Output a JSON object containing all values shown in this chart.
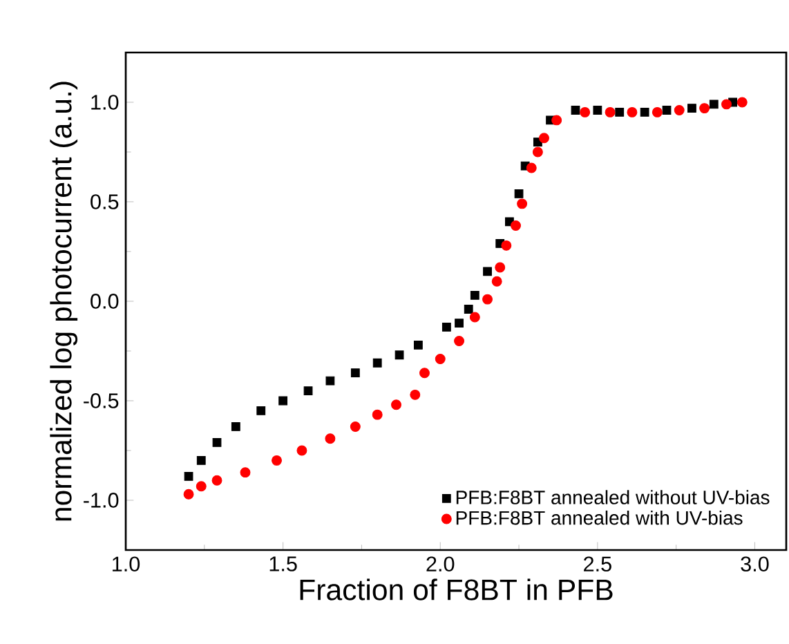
{
  "chart_data": {
    "type": "scatter",
    "xlabel": "Fraction of F8BT in PFB",
    "ylabel": "normalized log photocurrent (a.u.)",
    "xlim": [
      1.0,
      3.1
    ],
    "ylim": [
      -1.25,
      1.25
    ],
    "xticks": [
      {
        "value": 1.0,
        "label": "1.0"
      },
      {
        "value": 1.5,
        "label": "1.5"
      },
      {
        "value": 2.0,
        "label": "2.0"
      },
      {
        "value": 2.5,
        "label": "2.5"
      },
      {
        "value": 3.0,
        "label": "3.0"
      }
    ],
    "yticks": [
      {
        "value": -1.0,
        "label": "-1.0"
      },
      {
        "value": -0.5,
        "label": "-0.5"
      },
      {
        "value": 0.0,
        "label": "0.0"
      },
      {
        "value": 0.5,
        "label": "0.5"
      },
      {
        "value": 1.0,
        "label": "1.0"
      }
    ],
    "grid": false,
    "legend": "bottom right",
    "series": [
      {
        "name": "PFB:F8BT annealed without UV-bias",
        "color": "#000000",
        "marker": "square",
        "x": [
          1.2,
          1.24,
          1.29,
          1.35,
          1.43,
          1.5,
          1.58,
          1.65,
          1.73,
          1.8,
          1.87,
          1.93,
          2.02,
          2.06,
          2.09,
          2.11,
          2.15,
          2.19,
          2.22,
          2.25,
          2.27,
          2.31,
          2.35,
          2.43,
          2.5,
          2.57,
          2.65,
          2.72,
          2.8,
          2.87,
          2.93
        ],
        "values": [
          -0.88,
          -0.8,
          -0.71,
          -0.63,
          -0.55,
          -0.5,
          -0.45,
          -0.4,
          -0.36,
          -0.31,
          -0.27,
          -0.22,
          -0.13,
          -0.11,
          -0.04,
          0.03,
          0.15,
          0.29,
          0.4,
          0.54,
          0.68,
          0.8,
          0.91,
          0.96,
          0.96,
          0.95,
          0.95,
          0.96,
          0.97,
          0.99,
          1.0
        ]
      },
      {
        "name": "PFB:F8BT annealed with UV-bias",
        "color": "#ff0000",
        "marker": "circle",
        "x": [
          1.2,
          1.24,
          1.29,
          1.38,
          1.48,
          1.56,
          1.65,
          1.73,
          1.8,
          1.86,
          1.92,
          1.95,
          2.0,
          2.06,
          2.11,
          2.15,
          2.18,
          2.19,
          2.21,
          2.24,
          2.26,
          2.29,
          2.31,
          2.33,
          2.37,
          2.46,
          2.54,
          2.61,
          2.69,
          2.76,
          2.84,
          2.91,
          2.96
        ],
        "values": [
          -0.97,
          -0.93,
          -0.9,
          -0.86,
          -0.8,
          -0.75,
          -0.69,
          -0.63,
          -0.57,
          -0.52,
          -0.47,
          -0.36,
          -0.29,
          -0.2,
          -0.08,
          0.01,
          0.1,
          0.17,
          0.28,
          0.38,
          0.49,
          0.67,
          0.75,
          0.82,
          0.91,
          0.95,
          0.95,
          0.95,
          0.95,
          0.96,
          0.97,
          0.99,
          1.0
        ]
      }
    ]
  }
}
